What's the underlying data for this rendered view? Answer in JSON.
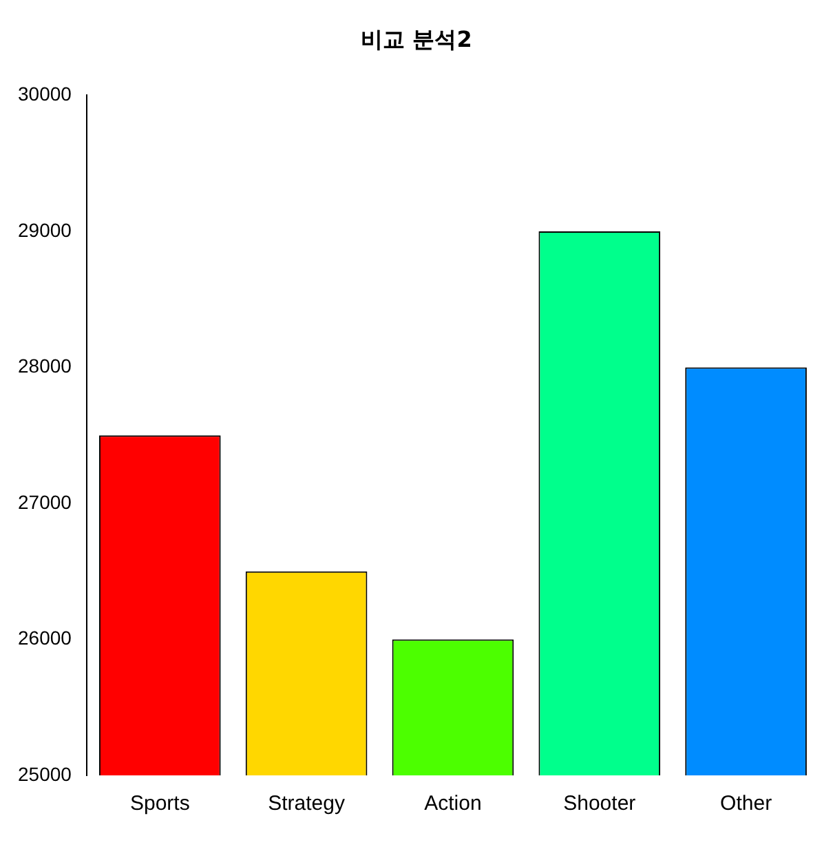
{
  "chart_data": {
    "type": "bar",
    "title": "비교 분석2",
    "categories": [
      "Sports",
      "Strategy",
      "Action",
      "Shooter",
      "Other"
    ],
    "values": [
      27500,
      26500,
      26000,
      29000,
      28000
    ],
    "colors": [
      "#ff0000",
      "#ffd700",
      "#4cff00",
      "#00ff8c",
      "#008cff"
    ],
    "ylim": [
      25000,
      30000
    ],
    "yticks": [
      25000,
      26000,
      27000,
      28000,
      29000,
      30000
    ],
    "grid": false,
    "legend": false
  }
}
